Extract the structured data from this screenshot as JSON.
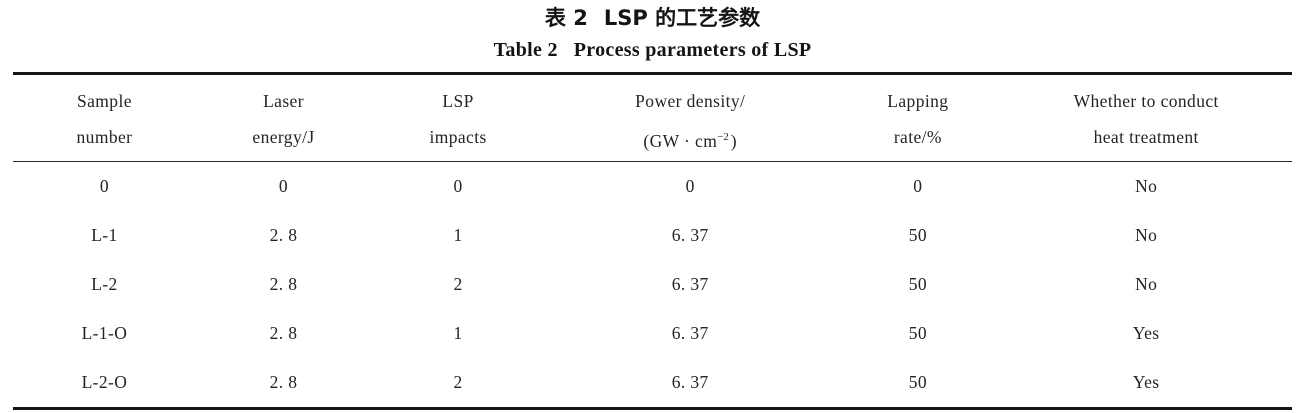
{
  "titles": {
    "zh_label": "表 2",
    "zh_text": "LSP 的工艺参数",
    "en_label": "Table 2",
    "en_text": "Process parameters of LSP"
  },
  "table": {
    "headers": [
      {
        "line1": "Sample",
        "line2": "number"
      },
      {
        "line1": "Laser",
        "line2": "energy/J"
      },
      {
        "line1": "LSP",
        "line2": "impacts"
      },
      {
        "line1": "Power density/",
        "line2_prefix": "(GW · cm",
        "line2_sup": "−2",
        "line2_suffix": ")"
      },
      {
        "line1": "Lapping",
        "line2": "rate/%"
      },
      {
        "line1": "Whether to conduct",
        "line2": "heat treatment"
      }
    ],
    "rows": [
      [
        "0",
        "0",
        "0",
        "0",
        "0",
        "No"
      ],
      [
        "L-1",
        "2. 8",
        "1",
        "6. 37",
        "50",
        "No"
      ],
      [
        "L-2",
        "2. 8",
        "2",
        "6. 37",
        "50",
        "No"
      ],
      [
        "L-1-O",
        "2. 8",
        "1",
        "6. 37",
        "50",
        "Yes"
      ],
      [
        "L-2-O",
        "2. 8",
        "2",
        "6. 37",
        "50",
        "Yes"
      ]
    ]
  },
  "colors": {
    "background": "#ffffff",
    "text": "#242424",
    "rule": "#161616"
  }
}
